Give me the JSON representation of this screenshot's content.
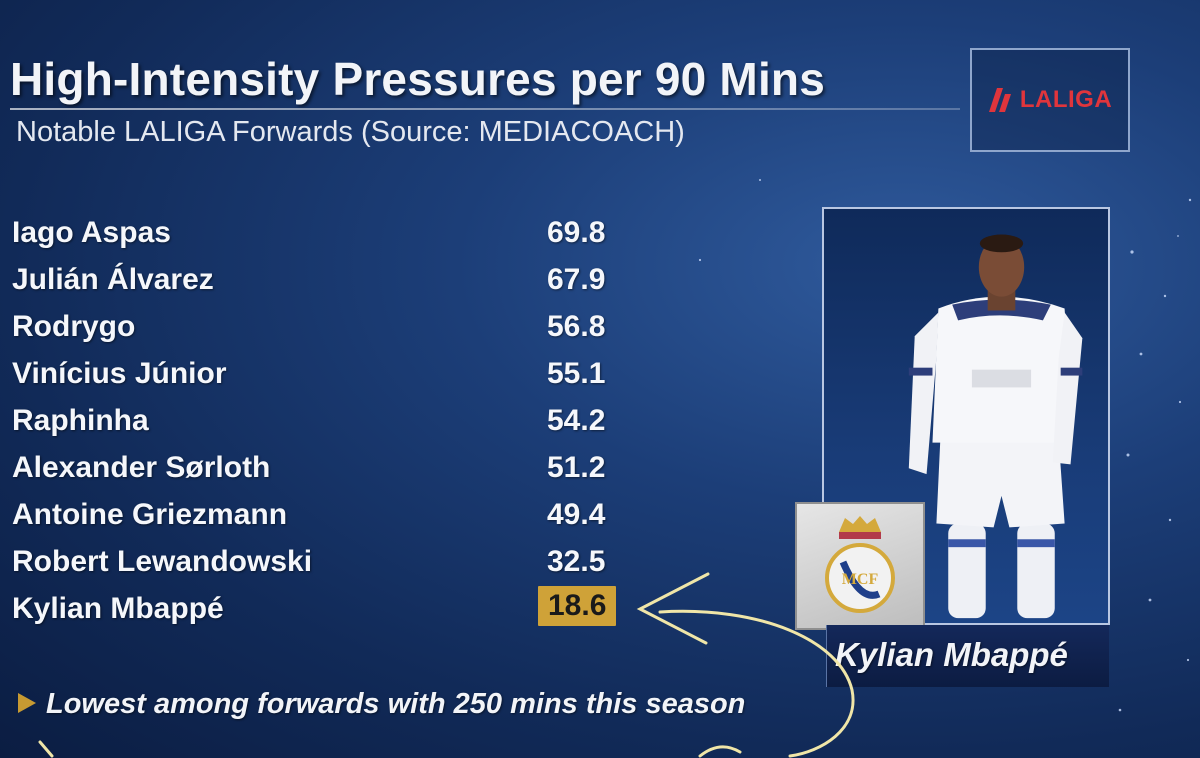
{
  "header": {
    "title": "High-Intensity Pressures per 90 Mins",
    "subtitle": "Notable LALIGA Forwards (Source: MEDIACOACH)"
  },
  "logo": {
    "text": "LALIGA",
    "icon": "laliga-icon",
    "color": "#e0353c"
  },
  "players": [
    {
      "name": "Iago Aspas",
      "value": "69.8"
    },
    {
      "name": "Julián Álvarez",
      "value": "67.9"
    },
    {
      "name": "Rodrygo",
      "value": "56.8"
    },
    {
      "name": "Vinícius Júnior",
      "value": "55.1"
    },
    {
      "name": "Raphinha",
      "value": "54.2"
    },
    {
      "name": "Alexander Sørloth",
      "value": "51.2"
    },
    {
      "name": "Antoine Griezmann",
      "value": "49.4"
    },
    {
      "name": "Robert Lewandowski",
      "value": "32.5"
    },
    {
      "name": "Kylian Mbappé",
      "value": "18.6",
      "highlight": true
    }
  ],
  "highlight_color": "#cfa238",
  "note": {
    "icon": "triangle-bullet-icon",
    "text": "Lowest among forwards with 250 mins this season"
  },
  "photo": {
    "caption": "Kylian Mbappé",
    "crest_icon": "real-madrid-crest-icon"
  }
}
